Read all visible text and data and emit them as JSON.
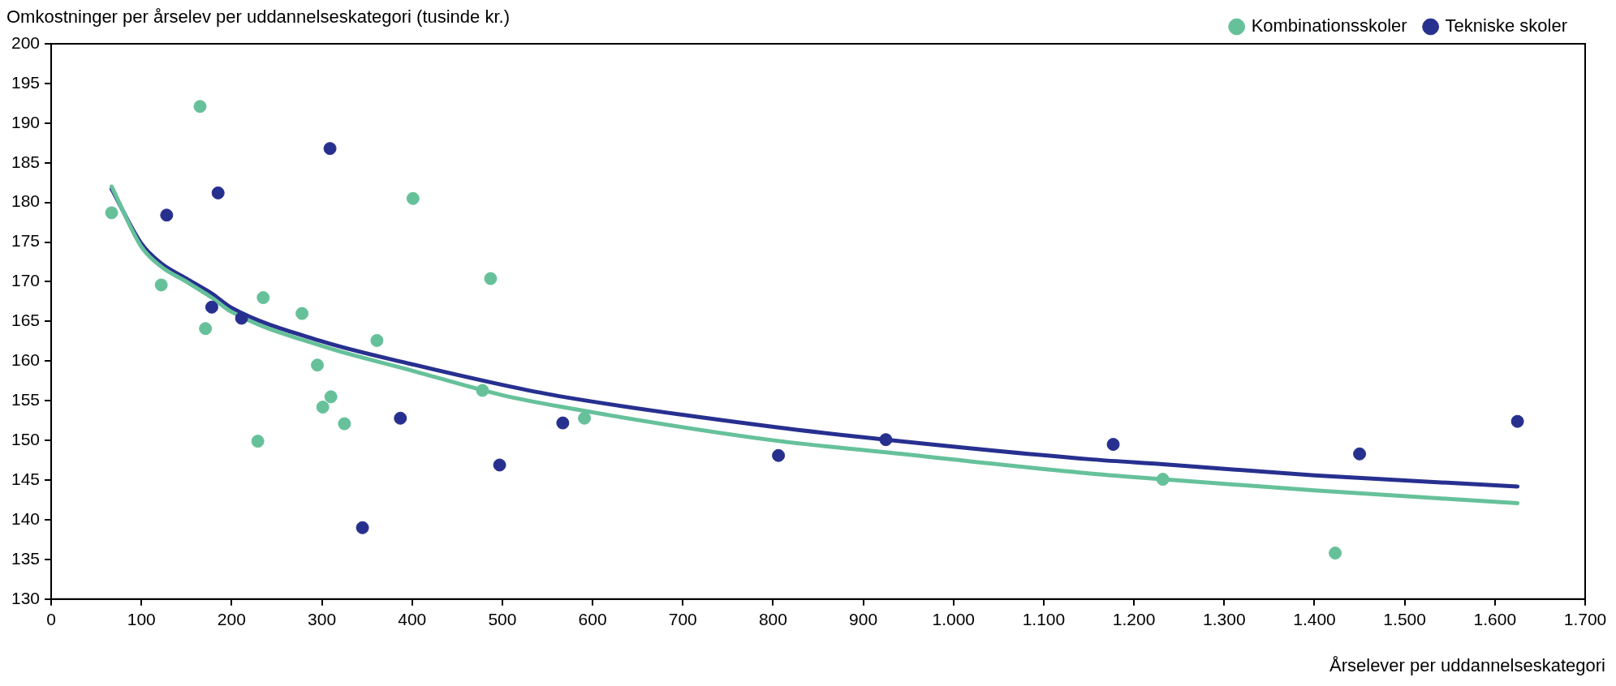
{
  "chart_data": {
    "type": "scatter",
    "ylabel": "Omkostninger per årselev per uddannelseskategori (tusinde kr.)",
    "xlabel": "Årselever per uddannelseskategori",
    "xlim": [
      0,
      1700
    ],
    "ylim": [
      130,
      200
    ],
    "xticks": [
      0,
      100,
      200,
      300,
      400,
      500,
      600,
      700,
      800,
      900,
      {
        "value": 1000,
        "label": "1.000"
      },
      {
        "value": 1100,
        "label": "1.100"
      },
      {
        "value": 1200,
        "label": "1.200"
      },
      {
        "value": 1300,
        "label": "1.300"
      },
      {
        "value": 1400,
        "label": "1.400"
      },
      {
        "value": 1500,
        "label": "1.500"
      },
      {
        "value": 1600,
        "label": "1.600"
      },
      {
        "value": 1700,
        "label": "1.700"
      }
    ],
    "yticks": [
      130,
      135,
      140,
      145,
      150,
      155,
      160,
      165,
      170,
      175,
      180,
      185,
      190,
      195,
      200
    ],
    "legend": "top right",
    "marker": "circle",
    "series": [
      {
        "name": "Kombinationsskoler",
        "color": "#66c19a",
        "x": [
          67,
          122,
          165,
          171,
          229,
          235,
          278,
          295,
          301,
          310,
          325,
          361,
          401,
          478,
          487,
          591,
          1232,
          1423
        ],
        "values": [
          178.7,
          169.6,
          192.1,
          164.1,
          149.9,
          168.0,
          166.0,
          159.5,
          154.2,
          155.5,
          152.1,
          162.6,
          180.5,
          156.3,
          170.4,
          152.8,
          145.1,
          135.8
        ]
      },
      {
        "name": "Tekniske skoler",
        "color": "#27308f",
        "x": [
          128,
          178,
          185,
          211,
          309,
          345,
          387,
          497,
          567,
          806,
          925,
          1177,
          1450,
          1625
        ],
        "values": [
          178.4,
          166.8,
          181.2,
          165.4,
          186.8,
          139.0,
          152.8,
          146.9,
          152.2,
          148.1,
          150.1,
          149.5,
          148.3,
          152.4
        ]
      },
      {
        "type": "line",
        "marker": "none",
        "color": "#66c19a",
        "x": [
          67,
          100,
          122,
          150,
          178,
          200,
          300,
          400,
          500,
          562,
          801,
          925,
          1154,
          1232,
          1400,
          1625
        ],
        "values": [
          182.0,
          174.4,
          171.9,
          170.0,
          168.0,
          166.2,
          161.9,
          158.8,
          155.7,
          154.3,
          150.0,
          148.5,
          145.8,
          145.1,
          143.7,
          142.1
        ]
      },
      {
        "type": "line",
        "marker": "none",
        "color": "#27308f",
        "x": [
          67,
          100,
          122,
          150,
          178,
          200,
          300,
          400,
          500,
          562,
          801,
          925,
          1154,
          1232,
          1400,
          1625
        ],
        "values": [
          181.7,
          174.8,
          172.3,
          170.4,
          168.5,
          166.7,
          162.5,
          159.6,
          157.0,
          155.6,
          151.7,
          150.1,
          147.6,
          147.0,
          145.6,
          144.2
        ]
      }
    ]
  }
}
